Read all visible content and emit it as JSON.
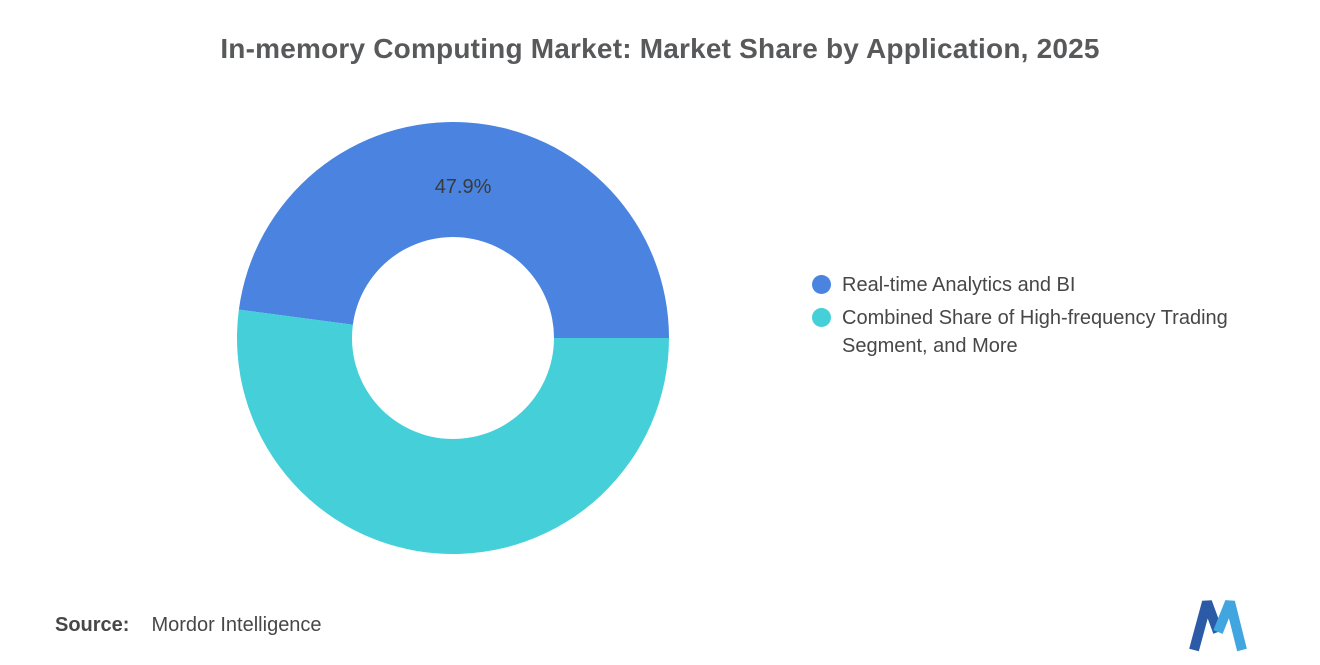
{
  "title": "In-memory Computing Market: Market Share by Application, 2025",
  "source": {
    "label": "Source:",
    "value": "Mordor Intelligence"
  },
  "logo": {
    "name": "Mordor Intelligence logo"
  },
  "chart_data": {
    "type": "pie",
    "subtype": "donut",
    "title": "In-memory Computing Market: Market Share by Application, 2025",
    "unit": "%",
    "start_angle_deg": 0,
    "direction": "counterclockwise",
    "inner_radius_ratio": 0.47,
    "legend_position": "right",
    "grid": false,
    "slices": [
      {
        "label": "Real-time Analytics and BI",
        "value": 47.9,
        "color": "#4A84E0",
        "data_label": "47.9%"
      },
      {
        "label": "Combined Share of High-frequency Trading Segment, and More",
        "value": 52.1,
        "color": "#45CFD8",
        "data_label": ""
      }
    ]
  }
}
